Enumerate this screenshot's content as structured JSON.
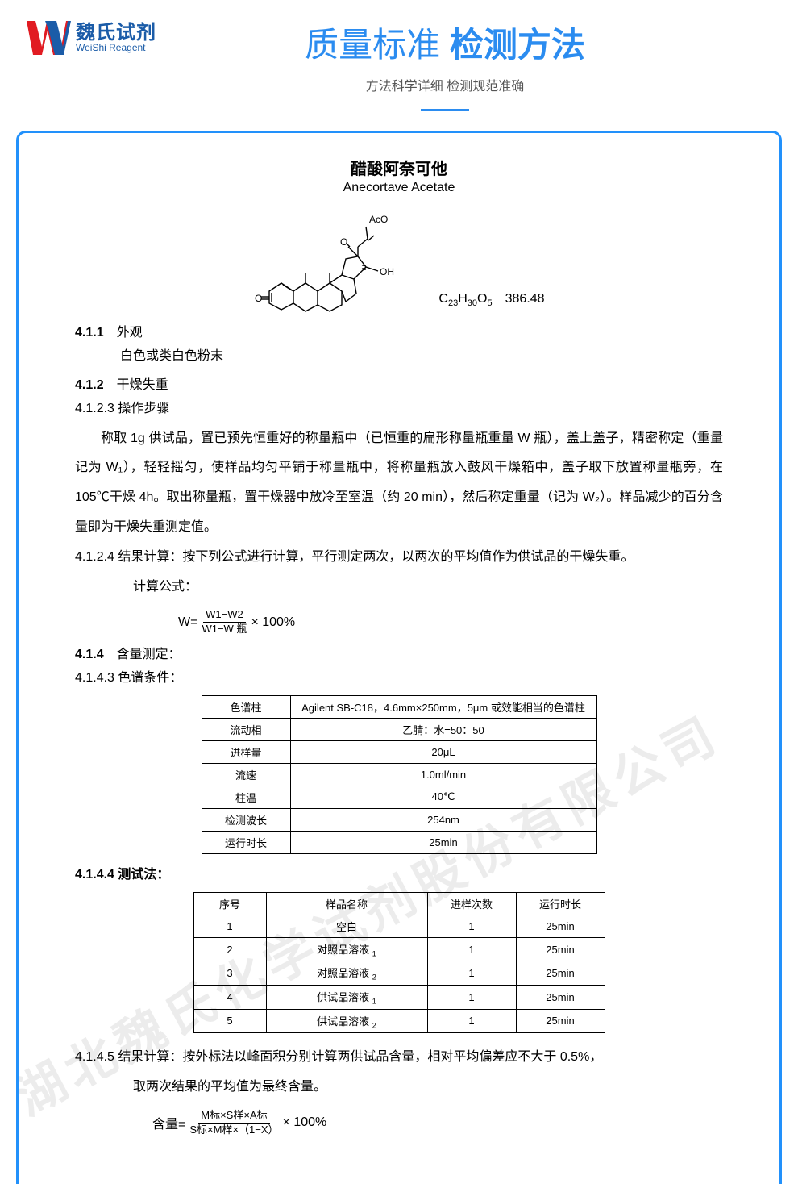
{
  "logo": {
    "cn": "魏氏试剂",
    "en": "WeiShi Reagent",
    "mark_colors": {
      "red": "#e11b22",
      "blue": "#1b5ca8"
    }
  },
  "header": {
    "title_light": "质量标准 ",
    "title_bold": "检测方法",
    "subtitle": "方法科学详细  检测规范准确",
    "accent_color": "#2b8cf0",
    "frame_color": "#2291fb"
  },
  "compound": {
    "name_cn": "醋酸阿奈可他",
    "name_en": "Anecortave Acetate",
    "formula_html": "C<sub>23</sub>H<sub>30</sub>O<sub>5</sub>　386.48",
    "structure_labels": {
      "aco": "AcO",
      "oh": "OH",
      "o1": "O",
      "o2": "O"
    }
  },
  "sections": {
    "s411_num": "4.1.1",
    "s411_title": "外观",
    "s411_desc": "白色或类白色粉末",
    "s412_num": "4.1.2",
    "s412_title": "干燥失重",
    "s4123": "4.1.2.3  操作步骤",
    "para1": "称取 1g 供试品，置已预先恒重好的称量瓶中（已恒重的扁形称量瓶重量 W 瓶），盖上盖子，精密称定（重量记为 W₁），轻轻摇匀，使样品均匀平铺于称量瓶中，将称量瓶放入鼓风干燥箱中，盖子取下放置称量瓶旁，在 105℃干燥 4h。取出称量瓶，置干燥器中放冷至室温（约 20 min），然后称定重量（记为 W₂）。样品减少的百分含量即为干燥失重测定值。",
    "s4124": "4.1.2.4  结果计算：按下列公式进行计算，平行测定两次，以两次的平均值作为供试品的干燥失重。",
    "calc_label": "计算公式：",
    "formula1": {
      "prefix": "W=",
      "numerator": "W1−W2",
      "denominator": "W1−W 瓶",
      "suffix": "× 100%"
    },
    "s414_num": "4.1.4",
    "s414_title": "含量测定：",
    "s4143": "4.1.4.3 色谱条件：",
    "s4144": "4.1.4.4 测试法：",
    "s4145": "4.1.4.5  结果计算：按外标法以峰面积分别计算两供试品含量，相对平均偏差应不大于  0.5%，",
    "s4145_cont": "取两次结果的平均值为最终含量。",
    "formula2": {
      "prefix": "含量=",
      "numerator": "M标×S样×A标",
      "denominator": "S标×M样×（1−X）",
      "suffix": " × 100%"
    }
  },
  "chrom_table": {
    "rows": [
      [
        "色谱柱",
        "Agilent SB-C18，4.6mm×250mm，5μm 或效能相当的色谱柱"
      ],
      [
        "流动相",
        "乙腈：水=50：50"
      ],
      [
        "进样量",
        "20μL"
      ],
      [
        "流速",
        "1.0ml/min"
      ],
      [
        "柱温",
        "40℃"
      ],
      [
        "检测波长",
        "254nm"
      ],
      [
        "运行时长",
        "25min"
      ]
    ]
  },
  "test_table": {
    "headers": [
      "序号",
      "样品名称",
      "进样次数",
      "运行时长"
    ],
    "rows": [
      [
        "1",
        "空白",
        "1",
        "25min"
      ],
      [
        "2",
        "对照品溶液 ₁",
        "1",
        "25min"
      ],
      [
        "3",
        "对照品溶液 ₂",
        "1",
        "25min"
      ],
      [
        "4",
        "供试品溶液 ₁",
        "1",
        "25min"
      ],
      [
        "5",
        "供试品溶液 ₂",
        "1",
        "25min"
      ]
    ]
  },
  "watermark": "湖北魏氏化学试剂股份有限公司"
}
